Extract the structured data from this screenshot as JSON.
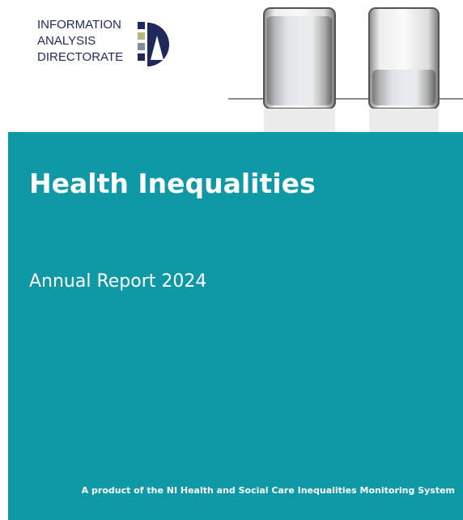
{
  "logo": {
    "lines": [
      "INFORMATION",
      "ANALYSIS",
      "DIRECTORATE"
    ]
  },
  "cover": {
    "title": "Health Inequalities",
    "subtitle": "Annual Report 2024",
    "footer": "A product of the NI Health and Social Care Inequalities Monitoring System"
  }
}
